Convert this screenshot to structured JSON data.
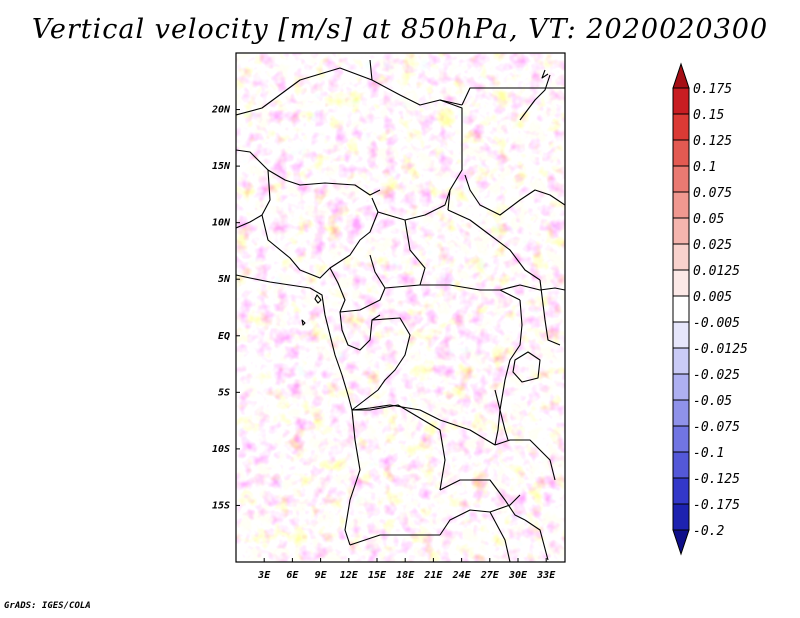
{
  "title": "Vertical velocity [m/s] at 850hPa, VT: 2020020300",
  "credit": "GrADS: IGES/COLA",
  "colors": {
    "border": "#000000",
    "field_red": "#e0463f",
    "field_blue": "#5b5fe6",
    "field_white": "#ffffff"
  },
  "chart_data": {
    "type": "heatmap",
    "variable": "Vertical velocity",
    "units": "m/s",
    "level": "850hPa",
    "valid_time": "2020020300",
    "lon_range": [
      0,
      35
    ],
    "lat_range": [
      -20,
      25
    ],
    "lon_ticks": [
      "3E",
      "6E",
      "9E",
      "12E",
      "15E",
      "18E",
      "21E",
      "24E",
      "27E",
      "30E",
      "33E"
    ],
    "lon_tick_values": [
      3,
      6,
      9,
      12,
      15,
      18,
      21,
      24,
      27,
      30,
      33
    ],
    "lat_ticks": [
      "20N",
      "15N",
      "10N",
      "5N",
      "EQ",
      "5S",
      "10S",
      "15S"
    ],
    "lat_tick_values": [
      20,
      15,
      10,
      5,
      0,
      -5,
      -10,
      -15
    ],
    "colorbar": {
      "levels": [
        "0.175",
        "0.15",
        "0.125",
        "0.1",
        "0.075",
        "0.05",
        "0.025",
        "0.0125",
        "0.005",
        "-0.005",
        "-0.0125",
        "-0.025",
        "-0.05",
        "-0.075",
        "-0.1",
        "-0.125",
        "-0.175",
        "-0.2"
      ],
      "colors": [
        "#a50f15",
        "#c81d22",
        "#db3a35",
        "#e35a52",
        "#ea7a72",
        "#f09890",
        "#f5b5ae",
        "#f9d2cd",
        "#fce9e7",
        "#ffffff",
        "#e6e6fb",
        "#cacbf6",
        "#aeb0f1",
        "#8f92ea",
        "#7175e3",
        "#5458d8",
        "#3338c9",
        "#1d22b0",
        "#0f0f8a"
      ]
    }
  }
}
